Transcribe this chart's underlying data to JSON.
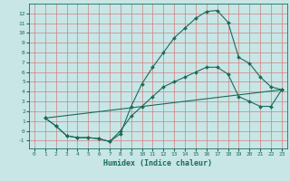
{
  "xlabel": "Humidex (Indice chaleur)",
  "bg_color": "#c8e6e6",
  "grid_color": "#e8b0b0",
  "line_color": "#1a6b5a",
  "xlim": [
    -0.5,
    23.5
  ],
  "ylim": [
    -1.8,
    13.0
  ],
  "xticks": [
    0,
    1,
    2,
    3,
    4,
    5,
    6,
    7,
    8,
    9,
    10,
    11,
    12,
    13,
    14,
    15,
    16,
    17,
    18,
    19,
    20,
    21,
    22,
    23
  ],
  "yticks": [
    -1,
    0,
    1,
    2,
    3,
    4,
    5,
    6,
    7,
    8,
    9,
    10,
    11,
    12
  ],
  "line1_x": [
    1,
    2,
    3,
    4,
    5,
    6,
    7,
    8,
    9,
    10,
    11,
    12,
    13,
    14,
    15,
    16,
    17,
    18,
    19,
    20,
    21,
    22,
    23
  ],
  "line1_y": [
    1.3,
    0.5,
    -0.5,
    -0.7,
    -0.7,
    -0.8,
    -1.1,
    -0.3,
    2.5,
    4.8,
    6.5,
    8.0,
    9.5,
    10.5,
    11.5,
    12.2,
    12.3,
    11.1,
    7.5,
    6.9,
    5.5,
    4.5,
    4.2
  ],
  "line2_x": [
    1,
    2,
    3,
    4,
    5,
    6,
    7,
    8,
    9,
    10,
    11,
    12,
    13,
    14,
    15,
    16,
    17,
    18,
    19,
    20,
    21,
    22,
    23
  ],
  "line2_y": [
    1.3,
    0.5,
    -0.5,
    -0.7,
    -0.7,
    -0.8,
    -1.1,
    0.0,
    1.5,
    2.5,
    3.5,
    4.5,
    5.0,
    5.5,
    6.0,
    6.5,
    6.5,
    5.8,
    3.5,
    3.0,
    2.5,
    2.5,
    4.2
  ],
  "line3_x": [
    1,
    23
  ],
  "line3_y": [
    1.3,
    4.2
  ]
}
